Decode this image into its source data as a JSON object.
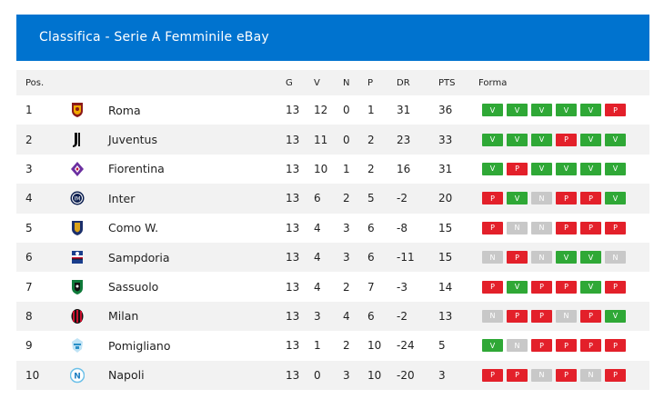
{
  "header": {
    "title": "Classifica - Serie A Femminile eBay"
  },
  "columns": {
    "pos": "Pos.",
    "g": "G",
    "v": "V",
    "n": "N",
    "p": "P",
    "dr": "DR",
    "pts": "PTS",
    "forma": "Forma"
  },
  "colors": {
    "header_bg": "#0073cf",
    "win": "#2fa836",
    "loss": "#e3202a",
    "draw": "#c8c8c8",
    "row_alt": "#f2f2f2"
  },
  "rows": [
    {
      "pos": "1",
      "team": "Roma",
      "logo": "roma-crest-icon",
      "g": "13",
      "v": "12",
      "n": "0",
      "p": "1",
      "dr": "31",
      "pts": "36",
      "form": [
        "V",
        "V",
        "V",
        "V",
        "V",
        "P"
      ]
    },
    {
      "pos": "2",
      "team": "Juventus",
      "logo": "juventus-crest-icon",
      "g": "13",
      "v": "11",
      "n": "0",
      "p": "2",
      "dr": "23",
      "pts": "33",
      "form": [
        "V",
        "V",
        "V",
        "P",
        "V",
        "V"
      ]
    },
    {
      "pos": "3",
      "team": "Fiorentina",
      "logo": "fiorentina-crest-icon",
      "g": "13",
      "v": "10",
      "n": "1",
      "p": "2",
      "dr": "16",
      "pts": "31",
      "form": [
        "V",
        "P",
        "V",
        "V",
        "V",
        "V"
      ]
    },
    {
      "pos": "4",
      "team": "Inter",
      "logo": "inter-crest-icon",
      "g": "13",
      "v": "6",
      "n": "2",
      "p": "5",
      "dr": "-2",
      "pts": "20",
      "form": [
        "P",
        "V",
        "N",
        "P",
        "P",
        "V"
      ]
    },
    {
      "pos": "5",
      "team": "Como W.",
      "logo": "como-crest-icon",
      "g": "13",
      "v": "4",
      "n": "3",
      "p": "6",
      "dr": "-8",
      "pts": "15",
      "form": [
        "P",
        "N",
        "N",
        "P",
        "P",
        "P"
      ]
    },
    {
      "pos": "6",
      "team": "Sampdoria",
      "logo": "sampdoria-crest-icon",
      "g": "13",
      "v": "4",
      "n": "3",
      "p": "6",
      "dr": "-11",
      "pts": "15",
      "form": [
        "N",
        "P",
        "N",
        "V",
        "V",
        "N"
      ]
    },
    {
      "pos": "7",
      "team": "Sassuolo",
      "logo": "sassuolo-crest-icon",
      "g": "13",
      "v": "4",
      "n": "2",
      "p": "7",
      "dr": "-3",
      "pts": "14",
      "form": [
        "P",
        "V",
        "P",
        "P",
        "V",
        "P"
      ]
    },
    {
      "pos": "8",
      "team": "Milan",
      "logo": "milan-crest-icon",
      "g": "13",
      "v": "3",
      "n": "4",
      "p": "6",
      "dr": "-2",
      "pts": "13",
      "form": [
        "N",
        "P",
        "P",
        "N",
        "P",
        "V"
      ]
    },
    {
      "pos": "9",
      "team": "Pomigliano",
      "logo": "pomigliano-crest-icon",
      "g": "13",
      "v": "1",
      "n": "2",
      "p": "10",
      "dr": "-24",
      "pts": "5",
      "form": [
        "V",
        "N",
        "P",
        "P",
        "P",
        "P"
      ]
    },
    {
      "pos": "10",
      "team": "Napoli",
      "logo": "napoli-crest-icon",
      "g": "13",
      "v": "0",
      "n": "3",
      "p": "10",
      "dr": "-20",
      "pts": "3",
      "form": [
        "P",
        "P",
        "N",
        "P",
        "N",
        "P"
      ]
    }
  ]
}
